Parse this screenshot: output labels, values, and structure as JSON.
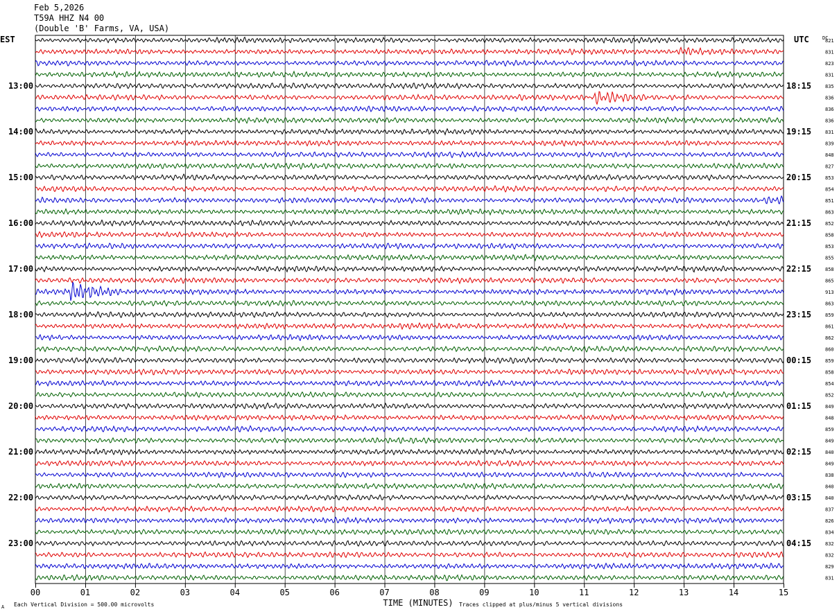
{
  "header": {
    "date": "Feb 5,2026",
    "station": "T59A HHZ N4 00",
    "location": "(Double 'B' Farms, VA, USA)"
  },
  "left_zone": "EST",
  "right_zone": "UTC",
  "dc_label": "DC",
  "colors": {
    "trace": [
      "#000000",
      "#e00000",
      "#0000d0",
      "#006000"
    ],
    "grid": "#000000",
    "background": "#ffffff"
  },
  "footer": {
    "left_note": "Each Vertical Division =  500.00 microvolts",
    "right_note": "Traces clipped at plus/minus 5 vertical divisions",
    "corner_mark": "A"
  },
  "chart_data": {
    "type": "line",
    "title": "",
    "xlabel": "TIME (MINUTES)",
    "x_ticks": [
      "00",
      "01",
      "02",
      "03",
      "04",
      "05",
      "06",
      "07",
      "08",
      "09",
      "10",
      "11",
      "12",
      "13",
      "14",
      "15"
    ],
    "xlim": [
      0,
      15
    ],
    "row_count": 48,
    "left_time_labels": [
      {
        "row": 4,
        "label": "13:00"
      },
      {
        "row": 8,
        "label": "14:00"
      },
      {
        "row": 12,
        "label": "15:00"
      },
      {
        "row": 16,
        "label": "16:00"
      },
      {
        "row": 20,
        "label": "17:00"
      },
      {
        "row": 24,
        "label": "18:00"
      },
      {
        "row": 28,
        "label": "19:00"
      },
      {
        "row": 32,
        "label": "20:00"
      },
      {
        "row": 36,
        "label": "21:00"
      },
      {
        "row": 40,
        "label": "22:00"
      },
      {
        "row": 44,
        "label": "23:00"
      }
    ],
    "right_time_labels": [
      {
        "row": 4,
        "label": "18:15"
      },
      {
        "row": 8,
        "label": "19:15"
      },
      {
        "row": 12,
        "label": "20:15"
      },
      {
        "row": 16,
        "label": "21:15"
      },
      {
        "row": 20,
        "label": "22:15"
      },
      {
        "row": 24,
        "label": "23:15"
      },
      {
        "row": 28,
        "label": "00:15"
      },
      {
        "row": 32,
        "label": "01:15"
      },
      {
        "row": 36,
        "label": "02:15"
      },
      {
        "row": 40,
        "label": "03:15"
      },
      {
        "row": 44,
        "label": "04:15"
      }
    ],
    "dc_offsets": [
      "821",
      "831",
      "823",
      "831",
      "835",
      "836",
      "836",
      "836",
      "831",
      "839",
      "848",
      "827",
      "853",
      "854",
      "851",
      "863",
      "852",
      "858",
      "853",
      "855",
      "858",
      "865",
      "913",
      "863",
      "859",
      "861",
      "862",
      "860",
      "859",
      "858",
      "854",
      "852",
      "849",
      "848",
      "859",
      "849",
      "840",
      "849",
      "838",
      "840",
      "840",
      "837",
      "826",
      "834",
      "832",
      "832",
      "829",
      "831"
    ],
    "events": [
      {
        "row": 1,
        "minute": 12.9,
        "width": 0.25,
        "amplitude": 1.4
      },
      {
        "row": 5,
        "minute": 11.2,
        "width": 0.6,
        "amplitude": 2.2
      },
      {
        "row": 14,
        "minute": 14.6,
        "width": 0.8,
        "amplitude": 0.9
      },
      {
        "row": 22,
        "minute": 0.65,
        "width": 0.55,
        "amplitude": 3.2
      }
    ],
    "grid": true,
    "legend": "none"
  }
}
